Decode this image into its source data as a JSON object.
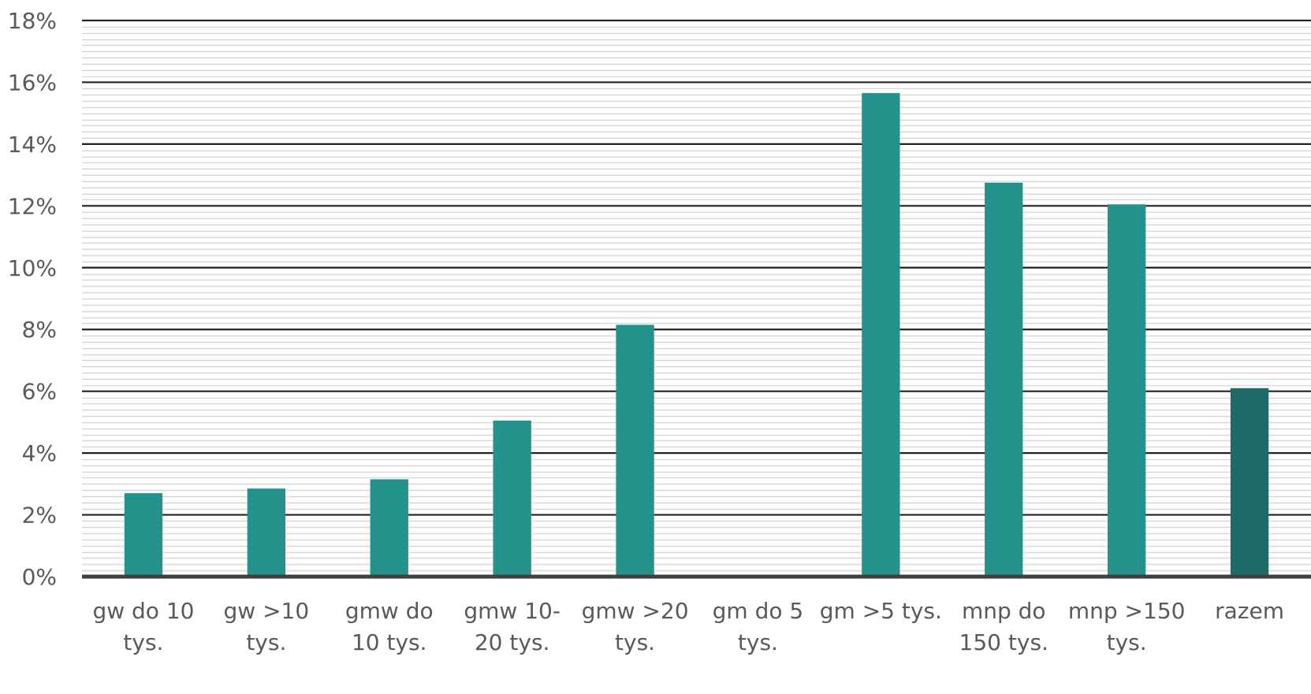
{
  "chart_data": {
    "type": "bar",
    "title": "",
    "xlabel": "",
    "ylabel": "",
    "categories": [
      [
        "gw do 10",
        "tys."
      ],
      [
        "gw >10",
        "tys."
      ],
      [
        "gmw  do",
        "10 tys."
      ],
      [
        "gmw  10-",
        "20 tys."
      ],
      [
        "gmw >20",
        "tys."
      ],
      [
        "gm do 5",
        "tys."
      ],
      [
        "gm >5 tys."
      ],
      [
        "mnp do",
        "150 tys."
      ],
      [
        "mnp >150",
        "tys."
      ],
      [
        "razem"
      ]
    ],
    "values": [
      2.7,
      2.85,
      3.15,
      5.05,
      8.15,
      0,
      15.65,
      12.75,
      12.05,
      6.1
    ],
    "ylim": [
      0,
      18
    ],
    "y_ticks": [
      0,
      2,
      4,
      6,
      8,
      10,
      12,
      14,
      16,
      18
    ],
    "y_tick_labels": [
      "0%",
      "2%",
      "4%",
      "6%",
      "8%",
      "10%",
      "12%",
      "14%",
      "16%",
      "18%"
    ],
    "grid": {
      "major": true,
      "minor": true
    },
    "legend": "none",
    "colors": {
      "bar": "#24928A",
      "highlight_bar": "#1C6B68",
      "major_grid": "#222222",
      "minor_grid": "#D9D9D9",
      "axis": "#404040",
      "text": "#595959"
    },
    "highlight_index": 9
  }
}
